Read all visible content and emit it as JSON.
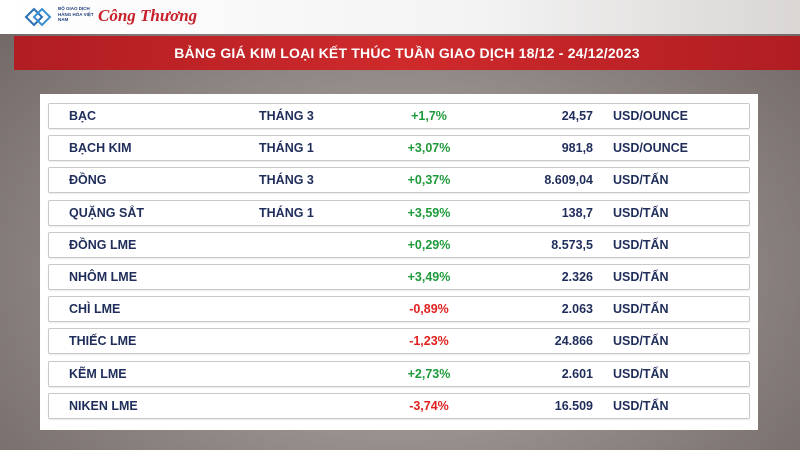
{
  "header": {
    "org": "BỘ GIAO DỊCH HÀNG HÓA VIỆT NAM",
    "brand": "Công Thương",
    "title": "BẢNG GIÁ KIM LOẠI KẾT THÚC TUẦN GIAO DỊCH 18/12 - 24/12/2023"
  },
  "table": {
    "positive_color": "#1f9a3b",
    "negative_color": "#e0211f",
    "rows": [
      {
        "name": "BẠC",
        "term": "THÁNG 3",
        "change": "+1,7%",
        "price": "24,57",
        "unit": "USD/OUNCE"
      },
      {
        "name": "BẠCH KIM",
        "term": "THÁNG 1",
        "change": "+3,07%",
        "price": "981,8",
        "unit": "USD/OUNCE"
      },
      {
        "name": "ĐỒNG",
        "term": "THÁNG 3",
        "change": "+0,37%",
        "price": "8.609,04",
        "unit": "USD/TẤN"
      },
      {
        "name": "QUẶNG SẮT",
        "term": "THÁNG 1",
        "change": "+3,59%",
        "price": "138,7",
        "unit": "USD/TẤN"
      },
      {
        "name": "ĐỒNG LME",
        "change": "+0,29%",
        "price": "8.573,5",
        "unit": "USD/TẤN"
      },
      {
        "name": "NHÔM LME",
        "change": "+3,49%",
        "price": "2.326",
        "unit": "USD/TẤN"
      },
      {
        "name": "CHÌ LME",
        "change": "-0,89%",
        "price": "2.063",
        "unit": "USD/TẤN"
      },
      {
        "name": "THIẾC LME",
        "change": "-1,23%",
        "price": "24.866",
        "unit": "USD/TẤN"
      },
      {
        "name": "KẼM LME",
        "change": "+2,73%",
        "price": "2.601",
        "unit": "USD/TẤN"
      },
      {
        "name": "NIKEN LME",
        "change": "-3,74%",
        "price": "16.509",
        "unit": "USD/TẤN"
      }
    ]
  }
}
